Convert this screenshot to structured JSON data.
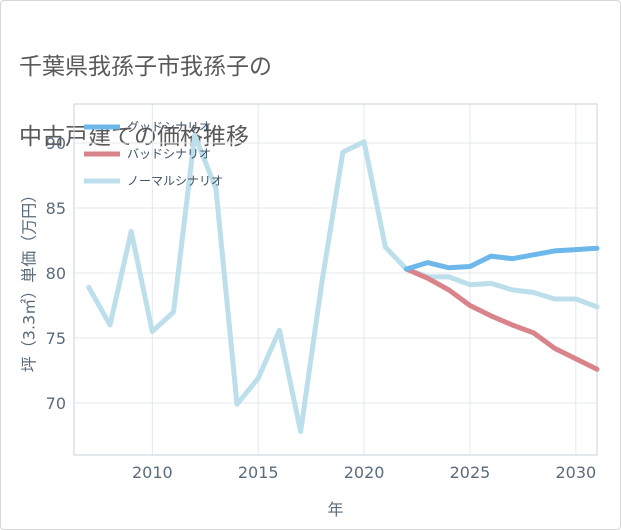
{
  "title_lines": [
    "千葉県我孫子市我孫子の",
    "中古戸建ての価格推移"
  ],
  "chart_data": {
    "type": "line",
    "xlabel": "年",
    "ylabel": "坪（3.3㎡）単価（万円）",
    "xlim": [
      2006.3,
      2031
    ],
    "ylim": [
      66,
      93
    ],
    "x_ticks": [
      2010,
      2015,
      2020,
      2025,
      2030
    ],
    "y_ticks": [
      70,
      75,
      80,
      85,
      90
    ],
    "grid": true,
    "legend_position": "top-left",
    "series": [
      {
        "name": "グッドシナリオ",
        "color": "#6cb8ea",
        "x": [
          2022,
          2023,
          2024,
          2025,
          2026,
          2027,
          2028,
          2029,
          2030,
          2031
        ],
        "y": [
          80.3,
          80.8,
          80.4,
          80.5,
          81.3,
          81.1,
          81.4,
          81.7,
          81.8,
          81.9
        ]
      },
      {
        "name": "バッドシナリオ",
        "color": "#d9848b",
        "x": [
          2022,
          2023,
          2024,
          2025,
          2026,
          2027,
          2028,
          2029,
          2030,
          2031
        ],
        "y": [
          80.3,
          79.6,
          78.7,
          77.5,
          76.7,
          76.0,
          75.4,
          74.2,
          73.4,
          72.6
        ]
      },
      {
        "name": "ノーマルシナリオ",
        "color": "#bcdfeb",
        "x": [
          2007,
          2008,
          2009,
          2010,
          2011,
          2012,
          2013,
          2014,
          2015,
          2016,
          2017,
          2018,
          2019,
          2020,
          2021,
          2022,
          2023,
          2024,
          2025,
          2026,
          2027,
          2028,
          2029,
          2030,
          2031
        ],
        "y": [
          78.9,
          76.0,
          83.2,
          75.5,
          77.0,
          90.6,
          86.5,
          69.9,
          71.9,
          75.6,
          67.8,
          79.2,
          89.3,
          90.1,
          82.0,
          80.3,
          79.7,
          79.7,
          79.1,
          79.2,
          78.7,
          78.5,
          78.0,
          78.0,
          77.4
        ]
      }
    ]
  }
}
